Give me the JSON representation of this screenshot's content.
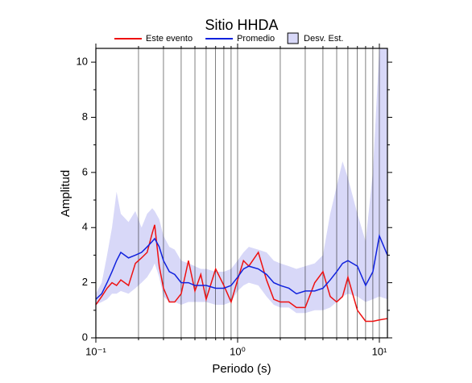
{
  "chart_data": {
    "type": "line",
    "title": "Sitio HHDA",
    "x_label": "Periodo (s)",
    "y_label": "Amplitud",
    "x_scale": "log",
    "grid": "x",
    "x": [
      0.1,
      0.11,
      0.12,
      0.13,
      0.14,
      0.15,
      0.17,
      0.19,
      0.21,
      0.23,
      0.25,
      0.26,
      0.28,
      0.3,
      0.33,
      0.36,
      0.4,
      0.45,
      0.5,
      0.55,
      0.6,
      0.7,
      0.8,
      0.9,
      1.0,
      1.1,
      1.2,
      1.4,
      1.6,
      1.8,
      2.0,
      2.3,
      2.6,
      3.0,
      3.5,
      4.0,
      4.5,
      5.0,
      5.5,
      6.0,
      7.0,
      8.0,
      9.0,
      10.0,
      11.4
    ],
    "series": [
      {
        "name": "Este evento",
        "color": "#ee1111",
        "values": [
          1.2,
          1.5,
          1.8,
          2.0,
          1.9,
          2.1,
          1.9,
          2.7,
          2.9,
          3.1,
          3.8,
          4.1,
          2.6,
          1.8,
          1.3,
          1.3,
          1.6,
          2.8,
          1.7,
          2.3,
          1.4,
          2.5,
          1.9,
          1.3,
          2.1,
          2.8,
          2.6,
          3.1,
          2.1,
          1.4,
          1.3,
          1.3,
          1.1,
          1.1,
          2.0,
          2.4,
          1.5,
          1.3,
          1.5,
          2.2,
          1.0,
          0.6,
          0.6,
          0.65,
          0.7
        ]
      },
      {
        "name": "Promedio",
        "color": "#1122dd",
        "values": [
          1.4,
          1.6,
          2.0,
          2.4,
          2.8,
          3.1,
          2.9,
          3.0,
          3.1,
          3.3,
          3.5,
          3.6,
          3.3,
          2.8,
          2.4,
          2.3,
          2.0,
          2.0,
          1.9,
          1.9,
          1.9,
          1.8,
          1.8,
          1.9,
          2.2,
          2.5,
          2.6,
          2.5,
          2.3,
          2.0,
          1.9,
          1.8,
          1.6,
          1.7,
          1.7,
          1.8,
          2.1,
          2.4,
          2.7,
          2.8,
          2.6,
          1.9,
          2.4,
          3.7,
          3.0
        ]
      }
    ],
    "band": {
      "name": "Desv. Est.",
      "color": "#d8d8f8",
      "lower": [
        1.2,
        1.3,
        1.4,
        1.6,
        1.6,
        1.7,
        1.6,
        1.8,
        2.0,
        2.2,
        2.5,
        2.7,
        2.2,
        1.5,
        1.3,
        1.3,
        1.2,
        1.3,
        1.3,
        1.3,
        1.3,
        1.2,
        1.2,
        1.3,
        1.7,
        1.9,
        2.0,
        1.9,
        1.5,
        1.2,
        1.1,
        1.1,
        0.9,
        0.9,
        1.0,
        1.0,
        1.1,
        1.3,
        1.5,
        1.6,
        1.5,
        1.3,
        1.4,
        1.5,
        1.4
      ],
      "upper": [
        1.6,
        2.0,
        3.0,
        4.0,
        5.3,
        4.5,
        4.2,
        4.6,
        4.0,
        4.5,
        4.7,
        4.6,
        4.3,
        3.7,
        3.3,
        3.2,
        2.8,
        2.7,
        2.6,
        2.5,
        2.5,
        2.4,
        2.4,
        2.5,
        2.8,
        3.1,
        3.3,
        3.2,
        3.1,
        2.8,
        2.7,
        2.6,
        2.5,
        2.6,
        2.7,
        3.0,
        4.5,
        5.5,
        6.4,
        5.8,
        4.5,
        3.5,
        6.0,
        10.5,
        10.5
      ]
    },
    "xlim": [
      0.1,
      11.4
    ],
    "ylim": [
      0,
      10.5
    ],
    "xticks": [
      {
        "value": 0.1,
        "label": "10⁻¹"
      },
      {
        "value": 1,
        "label": "10⁰"
      },
      {
        "value": 10,
        "label": "10¹"
      }
    ],
    "xminor_ticks": [
      0.2,
      0.3,
      0.4,
      0.5,
      0.6,
      0.7,
      0.8,
      0.9,
      2,
      3,
      4,
      5,
      6,
      7,
      8,
      9
    ],
    "yticks": [
      0,
      2,
      4,
      6,
      8,
      10
    ],
    "yminor_ticks": [
      1,
      3,
      5,
      7,
      9
    ]
  }
}
